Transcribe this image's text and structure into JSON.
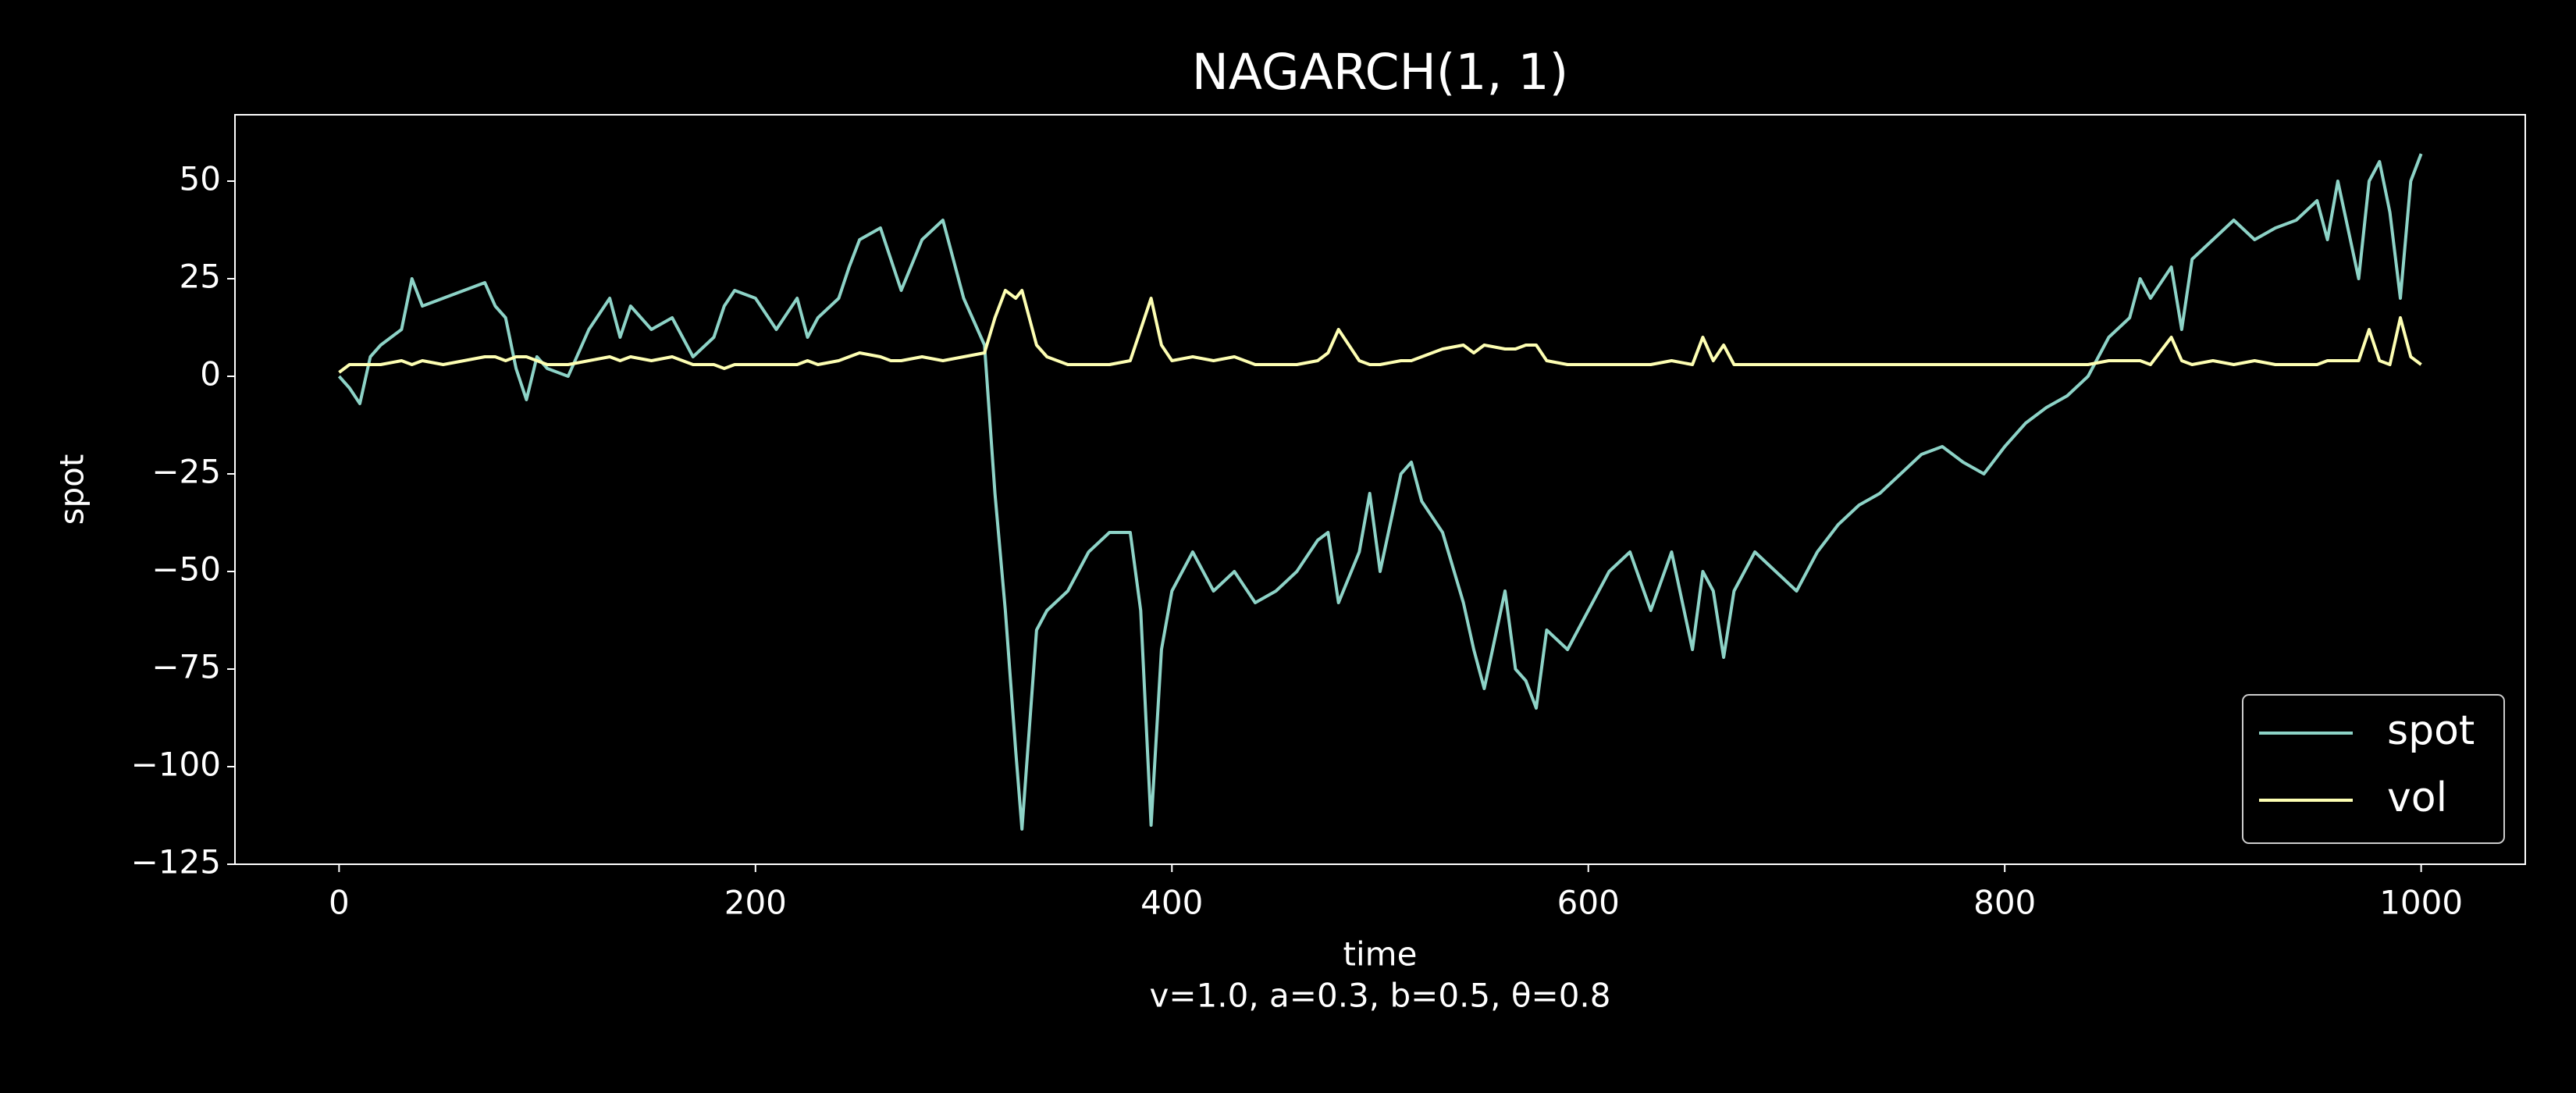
{
  "chart_data": {
    "type": "line",
    "title": "NAGARCH(1, 1)",
    "xlabel": "time",
    "ylabel": "spot",
    "subtitle": "v=1.0, a=0.3, b=0.5, θ=0.8",
    "x": [
      0,
      5,
      10,
      15,
      20,
      30,
      35,
      40,
      50,
      60,
      70,
      75,
      80,
      85,
      90,
      95,
      100,
      110,
      120,
      130,
      135,
      140,
      150,
      160,
      170,
      180,
      185,
      190,
      200,
      210,
      220,
      225,
      230,
      240,
      245,
      250,
      260,
      265,
      270,
      280,
      290,
      300,
      310,
      315,
      320,
      325,
      328,
      335,
      340,
      350,
      360,
      370,
      380,
      385,
      390,
      395,
      400,
      410,
      420,
      430,
      440,
      450,
      460,
      470,
      475,
      480,
      490,
      495,
      500,
      510,
      515,
      520,
      530,
      540,
      545,
      550,
      560,
      565,
      570,
      575,
      580,
      590,
      600,
      610,
      620,
      630,
      640,
      650,
      655,
      660,
      665,
      670,
      680,
      690,
      700,
      710,
      720,
      730,
      740,
      750,
      760,
      770,
      780,
      790,
      800,
      810,
      820,
      830,
      840,
      850,
      860,
      865,
      870,
      880,
      885,
      890,
      900,
      910,
      920,
      930,
      940,
      950,
      955,
      960,
      970,
      975,
      980,
      985,
      990,
      995,
      1000
    ],
    "series": [
      {
        "name": "spot",
        "color": "#8dd3c7",
        "values": [
          0,
          -3,
          -7,
          5,
          8,
          12,
          25,
          18,
          20,
          22,
          24,
          18,
          15,
          2,
          -6,
          5,
          2,
          0,
          12,
          20,
          10,
          18,
          12,
          15,
          5,
          10,
          18,
          22,
          20,
          12,
          20,
          10,
          15,
          20,
          28,
          35,
          38,
          30,
          22,
          35,
          40,
          20,
          8,
          -30,
          -60,
          -96,
          -116,
          -65,
          -60,
          -55,
          -45,
          -40,
          -40,
          -60,
          -115,
          -70,
          -55,
          -45,
          -55,
          -50,
          -58,
          -55,
          -50,
          -42,
          -40,
          -58,
          -45,
          -30,
          -50,
          -25,
          -22,
          -32,
          -40,
          -58,
          -70,
          -80,
          -55,
          -75,
          -78,
          -85,
          -65,
          -70,
          -60,
          -50,
          -45,
          -60,
          -45,
          -70,
          -50,
          -55,
          -72,
          -55,
          -45,
          -50,
          -55,
          -45,
          -38,
          -33,
          -30,
          -25,
          -20,
          -18,
          -22,
          -25,
          -18,
          -12,
          -8,
          -5,
          0,
          10,
          15,
          25,
          20,
          28,
          12,
          30,
          35,
          40,
          35,
          38,
          40,
          45,
          35,
          50,
          25,
          50,
          55,
          42,
          20,
          50,
          57
        ]
      },
      {
        "name": "vol",
        "color": "#feffb3",
        "values": [
          1,
          3,
          3,
          3,
          3,
          4,
          3,
          4,
          3,
          4,
          5,
          5,
          4,
          5,
          5,
          4,
          3,
          3,
          4,
          5,
          4,
          5,
          4,
          5,
          3,
          3,
          2,
          3,
          3,
          3,
          3,
          4,
          3,
          4,
          5,
          6,
          5,
          4,
          4,
          5,
          4,
          5,
          6,
          15,
          22,
          20,
          22,
          8,
          5,
          3,
          3,
          3,
          4,
          12,
          20,
          8,
          4,
          5,
          4,
          5,
          3,
          3,
          3,
          4,
          6,
          12,
          4,
          3,
          3,
          4,
          4,
          5,
          7,
          8,
          6,
          8,
          7,
          7,
          8,
          8,
          4,
          3,
          3,
          3,
          3,
          3,
          4,
          3,
          10,
          4,
          8,
          3,
          3,
          3,
          3,
          3,
          3,
          3,
          3,
          3,
          3,
          3,
          3,
          3,
          3,
          3,
          3,
          3,
          3,
          4,
          4,
          4,
          3,
          10,
          4,
          3,
          4,
          3,
          4,
          3,
          3,
          3,
          4,
          4,
          4,
          12,
          4,
          3,
          15,
          5,
          3
        ]
      }
    ],
    "xlim": [
      -50,
      1050
    ],
    "ylim": [
      -125,
      67
    ],
    "xticks": [
      0,
      200,
      400,
      600,
      800,
      1000
    ],
    "yticks": [
      50,
      25,
      0,
      {
        "value": -25,
        "label": "−25"
      },
      {
        "value": -50,
        "label": "−50"
      },
      {
        "value": -75,
        "label": "−75"
      },
      {
        "value": -100,
        "label": "−100"
      },
      {
        "value": -125,
        "label": "−125"
      }
    ],
    "legend": "lower right"
  }
}
